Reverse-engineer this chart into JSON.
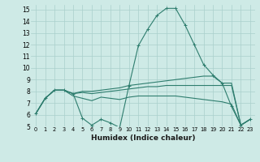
{
  "xlabel": "Humidex (Indice chaleur)",
  "bg_color": "#ceeae6",
  "grid_color": "#aacfcc",
  "line_color": "#2e7d6e",
  "xlim": [
    -0.5,
    23.5
  ],
  "ylim": [
    5,
    15.4
  ],
  "xtick_labels": [
    "0",
    "1",
    "2",
    "3",
    "4",
    "5",
    "6",
    "7",
    "8",
    "9",
    "10",
    "11",
    "12",
    "13",
    "14",
    "15",
    "16",
    "17",
    "18",
    "19",
    "20",
    "21",
    "22",
    "23"
  ],
  "xtick_vals": [
    0,
    1,
    2,
    3,
    4,
    5,
    6,
    7,
    8,
    9,
    10,
    11,
    12,
    13,
    14,
    15,
    16,
    17,
    18,
    19,
    20,
    21,
    22,
    23
  ],
  "ytick_vals": [
    5,
    6,
    7,
    8,
    9,
    10,
    11,
    12,
    13,
    14,
    15
  ],
  "series": [
    {
      "x": [
        0,
        1,
        2,
        3,
        4,
        5,
        6,
        7,
        8,
        9,
        10,
        11,
        12,
        13,
        14,
        15,
        16,
        17,
        18,
        19,
        20,
        21,
        22,
        23
      ],
      "y": [
        6.1,
        7.4,
        8.1,
        8.1,
        7.8,
        5.7,
        5.1,
        5.6,
        5.3,
        4.9,
        8.5,
        11.9,
        13.3,
        14.5,
        15.1,
        15.1,
        13.7,
        12.0,
        10.3,
        9.4,
        8.7,
        6.7,
        5.1,
        5.6
      ],
      "marker": true
    },
    {
      "x": [
        0,
        1,
        2,
        3,
        4,
        5,
        6,
        7,
        8,
        9,
        10,
        11,
        12,
        13,
        14,
        15,
        16,
        17,
        18,
        19,
        20,
        21,
        22,
        23
      ],
      "y": [
        6.1,
        7.4,
        8.1,
        8.1,
        7.8,
        8.0,
        8.0,
        8.1,
        8.2,
        8.3,
        8.5,
        8.6,
        8.7,
        8.8,
        8.9,
        9.0,
        9.1,
        9.2,
        9.3,
        9.3,
        8.7,
        8.7,
        5.1,
        5.6
      ],
      "marker": false
    },
    {
      "x": [
        0,
        1,
        2,
        3,
        4,
        5,
        6,
        7,
        8,
        9,
        10,
        11,
        12,
        13,
        14,
        15,
        16,
        17,
        18,
        19,
        20,
        21,
        22,
        23
      ],
      "y": [
        6.1,
        7.4,
        8.1,
        8.1,
        7.8,
        7.9,
        7.8,
        7.9,
        8.0,
        8.1,
        8.2,
        8.3,
        8.4,
        8.4,
        8.5,
        8.5,
        8.5,
        8.5,
        8.5,
        8.5,
        8.5,
        8.5,
        5.1,
        5.6
      ],
      "marker": false
    },
    {
      "x": [
        0,
        1,
        2,
        3,
        4,
        5,
        6,
        7,
        8,
        9,
        10,
        11,
        12,
        13,
        14,
        15,
        16,
        17,
        18,
        19,
        20,
        21,
        22,
        23
      ],
      "y": [
        6.1,
        7.4,
        8.1,
        8.1,
        7.6,
        7.4,
        7.2,
        7.5,
        7.4,
        7.3,
        7.5,
        7.6,
        7.6,
        7.6,
        7.6,
        7.6,
        7.5,
        7.4,
        7.3,
        7.2,
        7.1,
        6.9,
        5.1,
        5.6
      ],
      "marker": false
    }
  ]
}
